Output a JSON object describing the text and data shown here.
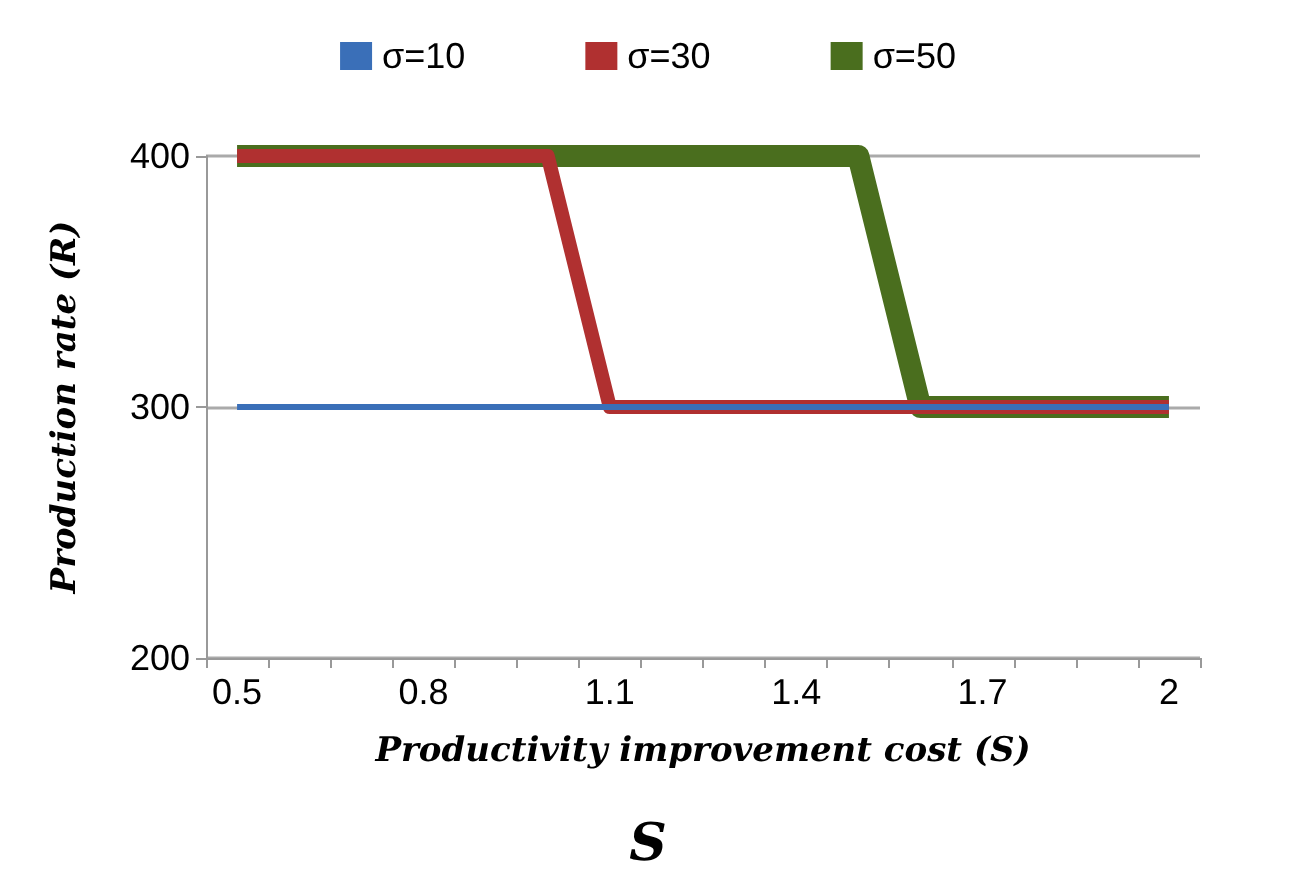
{
  "chart_data": {
    "type": "line",
    "xlabel": "Productivity improvement cost (S)",
    "ylabel": "Production rate (R)",
    "annotations": [
      "S"
    ],
    "categories": [
      "0.5",
      null,
      null,
      "0.8",
      null,
      null,
      "1.1",
      null,
      null,
      "1.4",
      null,
      null,
      "1.7",
      null,
      null,
      "2"
    ],
    "series": [
      {
        "name": "σ=10",
        "color": "#3a6fb8",
        "values": [
          300,
          300,
          300,
          300,
          300,
          300,
          300,
          300,
          300,
          300,
          300,
          300,
          300,
          300,
          300,
          300
        ]
      },
      {
        "name": "σ=30",
        "color": "#b03030",
        "values": [
          400,
          400,
          400,
          400,
          400,
          400,
          300,
          300,
          300,
          300,
          300,
          300,
          300,
          300,
          300,
          300
        ]
      },
      {
        "name": "σ=50",
        "color": "#4a6e1e",
        "values": [
          400,
          400,
          400,
          400,
          400,
          400,
          400,
          400,
          400,
          400,
          400,
          300,
          300,
          300,
          300,
          300
        ]
      }
    ],
    "ylim": [
      200,
      400
    ],
    "yticks": [
      200,
      300,
      400
    ],
    "grid": "y",
    "legend": "top",
    "marker": "none",
    "line_style": "solid"
  }
}
